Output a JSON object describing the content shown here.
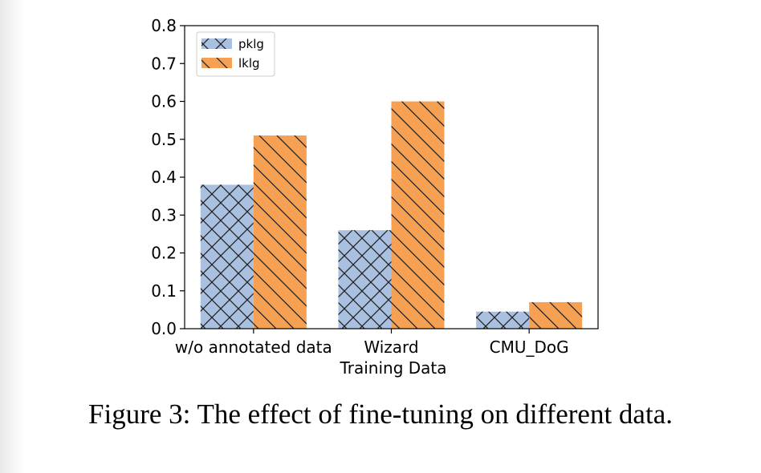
{
  "chart_data": {
    "type": "bar",
    "categories": [
      "w/o annotated data",
      "Wizard",
      "CMU_DoG"
    ],
    "series": [
      {
        "name": "pklg",
        "values": [
          0.38,
          0.26,
          0.045
        ],
        "color": "#a9c0e0",
        "hatch": "crosshatch"
      },
      {
        "name": "lklg",
        "values": [
          0.51,
          0.6,
          0.07
        ],
        "color": "#f5a052",
        "hatch": "backslash"
      }
    ],
    "title": "",
    "xlabel": "Training Data",
    "ylabel": "",
    "ylim": [
      0.0,
      0.8
    ],
    "yticks": [
      "0.0",
      "0.1",
      "0.2",
      "0.3",
      "0.4",
      "0.5",
      "0.6",
      "0.7",
      "0.8"
    ],
    "legend_position": "top-left",
    "grid": false
  },
  "caption": "Figure 3: The effect of fine-tuning on different data."
}
